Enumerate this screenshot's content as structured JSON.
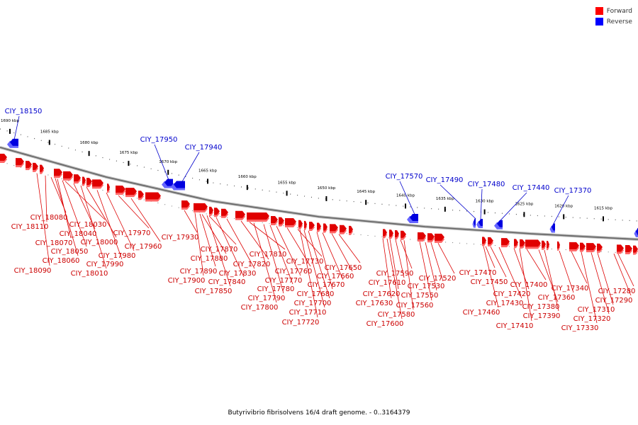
{
  "legend": {
    "forward_label": "Forward",
    "reverse_label": "Reverse",
    "forward_color": "#ff0000",
    "reverse_color": "#0000ff"
  },
  "caption": "Butyrivibrio fibrisolvens 16/4 draft genome. - 0..3164379",
  "ruler_ticks": [
    "1690 kbp",
    "1685 kbp",
    "1680 kbp",
    "1675 kbp",
    "1670 kbp",
    "1665 kbp",
    "1660 kbp",
    "1655 kbp",
    "1650 kbp",
    "1645 kbp",
    "1640 kbp",
    "1635 kbp",
    "1630 kbp",
    "1625 kbp",
    "1620 kbp",
    "1615 kbp"
  ],
  "reverse_genes": [
    "CIY_18150",
    "CIY_17950",
    "CIY_17940",
    "CIY_17570",
    "CIY_17490",
    "CIY_17480",
    "CIY_17440",
    "CIY_17370"
  ],
  "forward_genes": [
    "CIY_18080",
    "CIY_18110",
    "CIY_18030",
    "CIY_18040",
    "CIY_18070",
    "CIY_18000",
    "CIY_18050",
    "CIY_17970",
    "CIY_18060",
    "CIY_17980",
    "CIY_17960",
    "CIY_17990",
    "CIY_18090",
    "CIY_18010",
    "CIY_17930",
    "CIY_17870",
    "CIY_17880",
    "CIY_17810",
    "CIY_17820",
    "CIY_17890",
    "CIY_17830",
    "CIY_17900",
    "CIY_17840",
    "CIY_17850",
    "CIY_17730",
    "CIY_17760",
    "CIY_17770",
    "CIY_17780",
    "CIY_17790",
    "CIY_17800",
    "CIY_17650",
    "CIY_17660",
    "CIY_17670",
    "CIY_17680",
    "CIY_17700",
    "CIY_17710",
    "CIY_17720",
    "CIY_17590",
    "CIY_17610",
    "CIY_17620",
    "CIY_17630",
    "CIY_17580",
    "CIY_17600",
    "CIY_17520",
    "CIY_17530",
    "CIY_17550",
    "CIY_17560",
    "CIY_17470",
    "CIY_17450",
    "CIY_17430",
    "CIY_17460",
    "CIY_17400",
    "CIY_17420",
    "CIY_17380",
    "CIY_17390",
    "CIY_17410",
    "CIY_17340",
    "CIY_17360",
    "CIY_17280",
    "CIY_17290",
    "CIY_17310",
    "CIY_17320",
    "CIY_17330"
  ]
}
